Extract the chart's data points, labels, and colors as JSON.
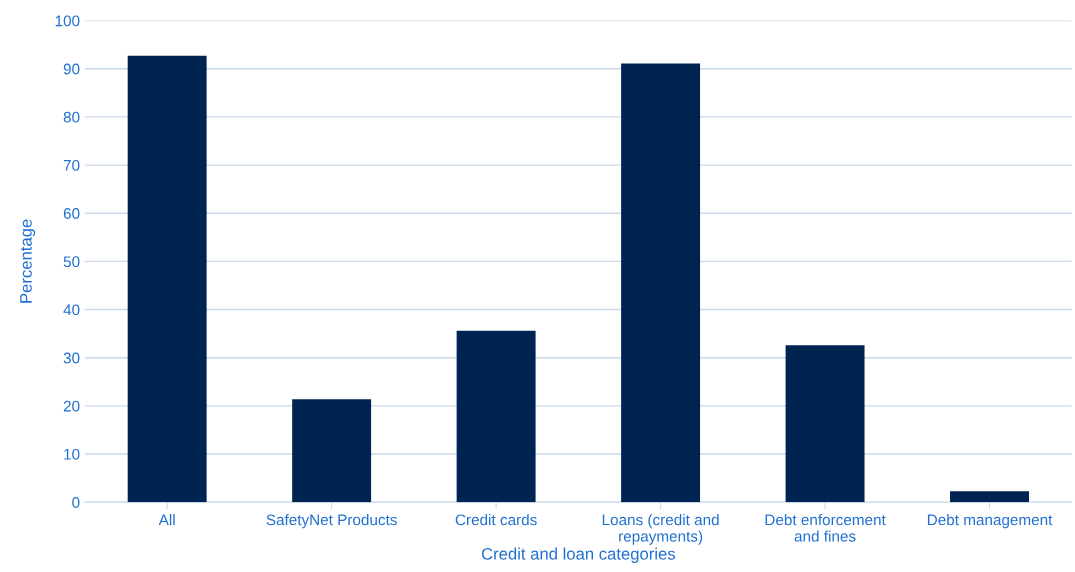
{
  "chart_data": {
    "type": "bar",
    "xlabel": "Credit and loan categories",
    "ylabel": "Percentage",
    "categories": [
      "All",
      "SafetyNet Products",
      "Credit cards",
      "Loans (credit and repayments)",
      "Debt enforcement and fines",
      "Debt management"
    ],
    "values": [
      92.7,
      21.4,
      35.6,
      91.1,
      32.6,
      2.3
    ],
    "color": "#002452",
    "ylim": [
      0,
      100
    ],
    "yticks": [
      0,
      10,
      20,
      30,
      40,
      50,
      60,
      70,
      80,
      90,
      100
    ],
    "grid": "y",
    "legend": false
  }
}
